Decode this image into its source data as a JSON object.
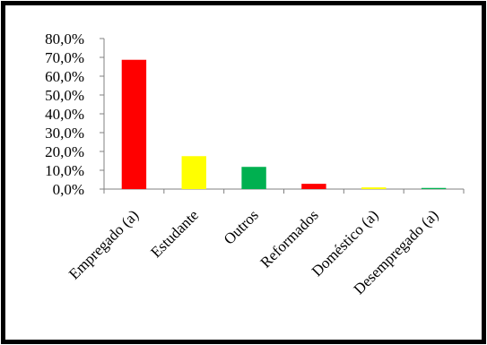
{
  "chart_data": {
    "type": "bar",
    "title": "",
    "xlabel": "",
    "ylabel": "",
    "categories": [
      "Empregado (a)",
      "Estudante",
      "Outros",
      "Reformados",
      "Doméstico (a)",
      "Desempregado (a)"
    ],
    "values": [
      68.7,
      17.5,
      11.8,
      2.8,
      0.9,
      0.6
    ],
    "colors": [
      "#ff0000",
      "#ffff00",
      "#00b050",
      "#ff0000",
      "#ffff00",
      "#00b050"
    ],
    "ylim": [
      0,
      80
    ],
    "yticks": [
      "0,0%",
      "10,0%",
      "20,0%",
      "30,0%",
      "40,0%",
      "50,0%",
      "60,0%",
      "70,0%",
      "80,0%"
    ],
    "grid": false,
    "legend": "none"
  }
}
